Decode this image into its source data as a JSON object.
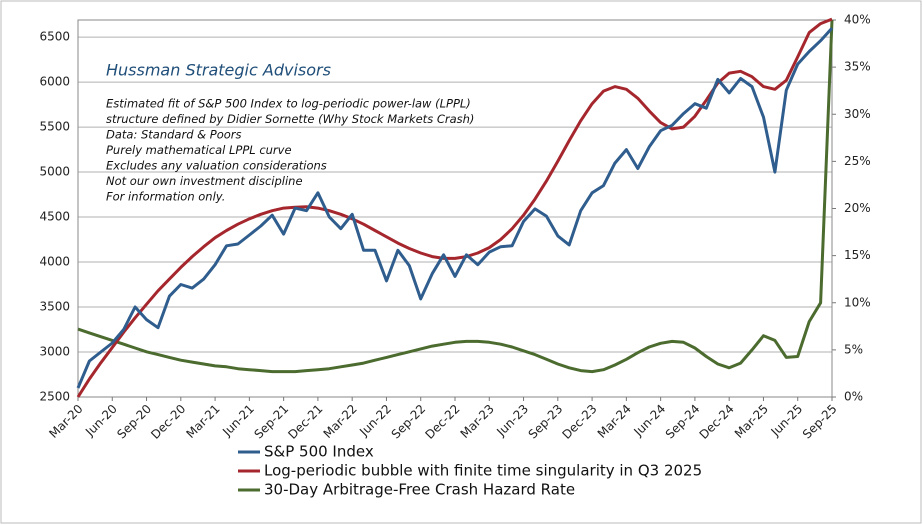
{
  "chart_data": {
    "type": "line",
    "title": "Hussman Strategic Advisors",
    "annotations": [
      "Estimated fit of S&P 500 Index to log-periodic power-law (LPPL)",
      "structure defined by Didier Sornette (Why Stock Markets Crash)",
      "Data: Standard & Poors",
      "Purely mathematical LPPL curve",
      "Excludes any valuation considerations",
      "Not our own investment discipline",
      "For information only."
    ],
    "x": [
      "Mar-20",
      null,
      null,
      "Jun-20",
      null,
      null,
      "Sep-20",
      null,
      null,
      "Dec-20",
      null,
      null,
      "Mar-21",
      null,
      null,
      "Jun-21",
      null,
      null,
      "Sep-21",
      null,
      null,
      "Dec-21",
      null,
      null,
      "Mar-22",
      null,
      null,
      "Jun-22",
      null,
      null,
      "Sep-22",
      null,
      null,
      "Dec-22",
      null,
      null,
      "Mar-23",
      null,
      null,
      "Jun-23",
      null,
      null,
      "Sep-23",
      null,
      null,
      "Dec-23",
      null,
      null,
      "Mar-24",
      null,
      null,
      "Jun-24",
      null,
      null,
      "Sep-24",
      null,
      null,
      "Dec-24",
      null,
      null,
      "Mar-25",
      null,
      null,
      "Jun-25",
      null,
      null,
      "Sep-25"
    ],
    "ylim": [
      2500,
      6690
    ],
    "yticks": [
      2500,
      3000,
      3500,
      4000,
      4500,
      5000,
      5500,
      6000,
      6500
    ],
    "y2lim": [
      0,
      40
    ],
    "y2ticks": [
      {
        "value": 0,
        "label": "0%"
      },
      {
        "value": 5,
        "label": "5%"
      },
      {
        "value": 10,
        "label": "10%"
      },
      {
        "value": 15,
        "label": "15%"
      },
      {
        "value": 20,
        "label": "20%"
      },
      {
        "value": 25,
        "label": "25%"
      },
      {
        "value": 30,
        "label": "30%"
      },
      {
        "value": 35,
        "label": "35%"
      },
      {
        "value": 40,
        "label": "40%"
      }
    ],
    "grid": true,
    "series": [
      {
        "name": "S&P 500 Index",
        "color": "#2f5d8e",
        "values": [
          2600,
          2900,
          3000,
          3100,
          3250,
          3500,
          3360,
          3270,
          3620,
          3750,
          3710,
          3810,
          3970,
          4180,
          4200,
          4300,
          4400,
          4520,
          4310,
          4600,
          4570,
          4770,
          4500,
          4370,
          4530,
          4130,
          4130,
          3790,
          4130,
          3960,
          3590,
          3870,
          4080,
          3840,
          4080,
          3970,
          4110,
          4170,
          4180,
          4450,
          4590,
          4510,
          4290,
          4190,
          4570,
          4770,
          4850,
          5100,
          5250,
          5040,
          5280,
          5460,
          5520,
          5650,
          5760,
          5710,
          6030,
          5880,
          6040,
          5950,
          5610,
          5000,
          5910,
          6200,
          6340,
          6460,
          6600
        ]
      },
      {
        "name": "Log-periodic bubble with finite time singularity in Q3 2025",
        "color": "#a5272d",
        "values": [
          2500,
          2700,
          2880,
          3050,
          3220,
          3380,
          3530,
          3680,
          3810,
          3940,
          4060,
          4170,
          4270,
          4350,
          4420,
          4480,
          4530,
          4570,
          4600,
          4610,
          4615,
          4600,
          4570,
          4530,
          4480,
          4420,
          4350,
          4280,
          4210,
          4150,
          4100,
          4060,
          4040,
          4040,
          4060,
          4100,
          4160,
          4250,
          4370,
          4520,
          4700,
          4900,
          5120,
          5350,
          5570,
          5760,
          5900,
          5950,
          5920,
          5820,
          5680,
          5550,
          5480,
          5500,
          5620,
          5800,
          5990,
          6100,
          6120,
          6060,
          5950,
          5920,
          6020,
          6280,
          6550,
          6650,
          6700
        ]
      },
      {
        "name": "30-Day Arbitrage-Free Crash Hazard Rate",
        "color": "#4b6b2f",
        "axis": "y2",
        "values": [
          7.2,
          6.8,
          6.4,
          6.0,
          5.6,
          5.2,
          4.8,
          4.5,
          4.2,
          3.9,
          3.7,
          3.5,
          3.3,
          3.2,
          3.0,
          2.9,
          2.8,
          2.7,
          2.7,
          2.7,
          2.8,
          2.9,
          3.0,
          3.2,
          3.4,
          3.6,
          3.9,
          4.2,
          4.5,
          4.8,
          5.1,
          5.4,
          5.6,
          5.8,
          5.9,
          5.9,
          5.8,
          5.6,
          5.3,
          4.9,
          4.5,
          4.0,
          3.5,
          3.1,
          2.8,
          2.7,
          2.9,
          3.4,
          4.0,
          4.7,
          5.3,
          5.7,
          5.9,
          5.8,
          5.2,
          4.3,
          3.5,
          3.1,
          3.6,
          5.0,
          6.5,
          6.0,
          4.2,
          4.3,
          8.0,
          10.0,
          40.0
        ]
      }
    ]
  }
}
